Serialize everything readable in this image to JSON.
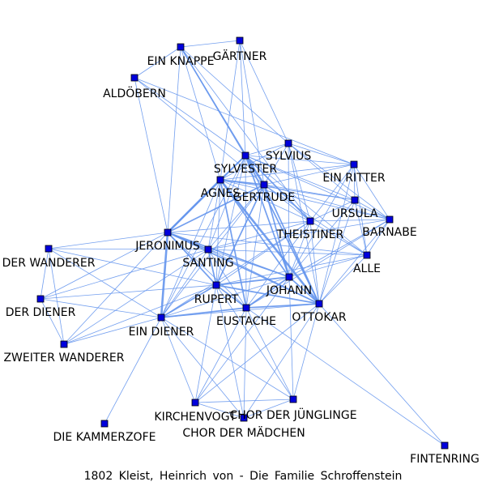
{
  "caption": "1802  Kleist,  Heinrich  von  -  Die  Familie  Schroffenstein",
  "colors": {
    "edge": "#6495ed",
    "node_fill": "#0000dd",
    "node_stroke": "#000000",
    "label": "#000000"
  },
  "nodes": [
    {
      "id": "gaertner",
      "label": "GÄRTNER"
    },
    {
      "id": "ein_knappe",
      "label": "EIN KNAPPE"
    },
    {
      "id": "aldoebern",
      "label": "ALDÖBERN"
    },
    {
      "id": "sylvius",
      "label": "SYLVIUS"
    },
    {
      "id": "sylvester",
      "label": "SYLVESTER"
    },
    {
      "id": "ein_ritter",
      "label": "EIN RITTER"
    },
    {
      "id": "agnes",
      "label": "AGNES"
    },
    {
      "id": "gertrude",
      "label": "GERTRUDE"
    },
    {
      "id": "ursula",
      "label": "URSULA"
    },
    {
      "id": "barnabe",
      "label": "BARNABE"
    },
    {
      "id": "theistiner",
      "label": "THEISTINER"
    },
    {
      "id": "jeronimus",
      "label": "JERONIMUS"
    },
    {
      "id": "der_wanderer",
      "label": "DER WANDERER"
    },
    {
      "id": "santing",
      "label": "SANTING"
    },
    {
      "id": "alle",
      "label": "ALLE"
    },
    {
      "id": "johann",
      "label": "JOHANN"
    },
    {
      "id": "der_diener",
      "label": "DER DIENER"
    },
    {
      "id": "rupert",
      "label": "RUPERT"
    },
    {
      "id": "ottokar",
      "label": "OTTOKAR"
    },
    {
      "id": "eustache",
      "label": "EUSTACHE"
    },
    {
      "id": "ein_diener",
      "label": "EIN DIENER"
    },
    {
      "id": "zweiter_wanderer",
      "label": "ZWEITER WANDERER"
    },
    {
      "id": "kirchenvogt",
      "label": "KIRCHENVOGT"
    },
    {
      "id": "chor_juenglinge",
      "label": "CHOR DER JÜNGLINGE"
    },
    {
      "id": "chor_maedchen",
      "label": "CHOR DER MÄDCHEN"
    },
    {
      "id": "die_kammerzofe",
      "label": "DIE KAMMERZOFE"
    },
    {
      "id": "fintenring",
      "label": "FINTENRING"
    }
  ],
  "edges": [
    [
      "ein_knappe",
      "gaertner",
      1
    ],
    [
      "ein_knappe",
      "aldoebern",
      1
    ],
    [
      "ein_knappe",
      "sylvester",
      2
    ],
    [
      "ein_knappe",
      "agnes",
      1
    ],
    [
      "ein_knappe",
      "gertrude",
      1
    ],
    [
      "ein_knappe",
      "jeronimus",
      1
    ],
    [
      "ein_knappe",
      "sylvius",
      1
    ],
    [
      "ein_knappe",
      "theistiner",
      1
    ],
    [
      "gaertner",
      "sylvester",
      1
    ],
    [
      "gaertner",
      "agnes",
      1
    ],
    [
      "gaertner",
      "gertrude",
      1
    ],
    [
      "gaertner",
      "sylvius",
      1
    ],
    [
      "aldoebern",
      "sylvester",
      1
    ],
    [
      "aldoebern",
      "gertrude",
      1
    ],
    [
      "aldoebern",
      "ein_ritter",
      1
    ],
    [
      "aldoebern",
      "jeronimus",
      1
    ],
    [
      "sylvester",
      "sylvius",
      1
    ],
    [
      "sylvester",
      "gertrude",
      3
    ],
    [
      "sylvester",
      "agnes",
      2
    ],
    [
      "sylvester",
      "ein_ritter",
      1
    ],
    [
      "sylvester",
      "ursula",
      1
    ],
    [
      "sylvester",
      "barnabe",
      1
    ],
    [
      "sylvester",
      "theistiner",
      2
    ],
    [
      "sylvester",
      "jeronimus",
      2
    ],
    [
      "sylvester",
      "santing",
      1
    ],
    [
      "sylvester",
      "johann",
      2
    ],
    [
      "sylvester",
      "ottokar",
      2
    ],
    [
      "sylvester",
      "rupert",
      1
    ],
    [
      "sylvester",
      "eustache",
      1
    ],
    [
      "sylvester",
      "alle",
      1
    ],
    [
      "sylvester",
      "ein_diener",
      1
    ],
    [
      "sylvius",
      "agnes",
      1
    ],
    [
      "sylvius",
      "gertrude",
      1
    ],
    [
      "sylvius",
      "ein_ritter",
      1
    ],
    [
      "sylvius",
      "ursula",
      1
    ],
    [
      "sylvius",
      "barnabe",
      1
    ],
    [
      "sylvius",
      "theistiner",
      1
    ],
    [
      "sylvius",
      "johann",
      1
    ],
    [
      "sylvius",
      "ottokar",
      1
    ],
    [
      "ein_ritter",
      "agnes",
      1
    ],
    [
      "ein_ritter",
      "gertrude",
      1
    ],
    [
      "ein_ritter",
      "ursula",
      1
    ],
    [
      "ein_ritter",
      "barnabe",
      1
    ],
    [
      "ein_ritter",
      "theistiner",
      1
    ],
    [
      "ein_ritter",
      "johann",
      1
    ],
    [
      "ein_ritter",
      "ottokar",
      1
    ],
    [
      "ein_ritter",
      "alle",
      1
    ],
    [
      "agnes",
      "gertrude",
      2
    ],
    [
      "agnes",
      "jeronimus",
      3
    ],
    [
      "agnes",
      "johann",
      2
    ],
    [
      "agnes",
      "ottokar",
      3
    ],
    [
      "agnes",
      "santing",
      1
    ],
    [
      "agnes",
      "rupert",
      1
    ],
    [
      "agnes",
      "eustache",
      2
    ],
    [
      "agnes",
      "ursula",
      1
    ],
    [
      "agnes",
      "barnabe",
      1
    ],
    [
      "agnes",
      "theistiner",
      1
    ],
    [
      "agnes",
      "ein_diener",
      1
    ],
    [
      "gertrude",
      "jeronimus",
      2
    ],
    [
      "gertrude",
      "johann",
      2
    ],
    [
      "gertrude",
      "ottokar",
      2
    ],
    [
      "gertrude",
      "rupert",
      2
    ],
    [
      "gertrude",
      "eustache",
      1
    ],
    [
      "gertrude",
      "santing",
      1
    ],
    [
      "gertrude",
      "ursula",
      1
    ],
    [
      "gertrude",
      "barnabe",
      1
    ],
    [
      "gertrude",
      "theistiner",
      1
    ],
    [
      "gertrude",
      "alle",
      1
    ],
    [
      "gertrude",
      "ein_diener",
      1
    ],
    [
      "ursula",
      "barnabe",
      1
    ],
    [
      "ursula",
      "theistiner",
      1
    ],
    [
      "ursula",
      "johann",
      1
    ],
    [
      "ursula",
      "ottokar",
      1
    ],
    [
      "ursula",
      "alle",
      1
    ],
    [
      "barnabe",
      "theistiner",
      1
    ],
    [
      "barnabe",
      "johann",
      1
    ],
    [
      "barnabe",
      "ottokar",
      1
    ],
    [
      "barnabe",
      "alle",
      1
    ],
    [
      "barnabe",
      "santing",
      1
    ],
    [
      "barnabe",
      "eustache",
      1
    ],
    [
      "theistiner",
      "jeronimus",
      1
    ],
    [
      "theistiner",
      "santing",
      1
    ],
    [
      "theistiner",
      "johann",
      1
    ],
    [
      "theistiner",
      "ottokar",
      1
    ],
    [
      "theistiner",
      "rupert",
      1
    ],
    [
      "theistiner",
      "eustache",
      1
    ],
    [
      "theistiner",
      "alle",
      1
    ],
    [
      "theistiner",
      "ein_diener",
      1
    ],
    [
      "jeronimus",
      "santing",
      2
    ],
    [
      "jeronimus",
      "johann",
      2
    ],
    [
      "jeronimus",
      "ottokar",
      2
    ],
    [
      "jeronimus",
      "rupert",
      2
    ],
    [
      "jeronimus",
      "eustache",
      1
    ],
    [
      "jeronimus",
      "ein_diener",
      3
    ],
    [
      "jeronimus",
      "der_wanderer",
      1
    ],
    [
      "jeronimus",
      "der_diener",
      1
    ],
    [
      "jeronimus",
      "zweiter_wanderer",
      1
    ],
    [
      "jeronimus",
      "alle",
      1
    ],
    [
      "der_wanderer",
      "santing",
      1
    ],
    [
      "der_wanderer",
      "ein_diener",
      1
    ],
    [
      "der_wanderer",
      "der_diener",
      1
    ],
    [
      "der_wanderer",
      "zweiter_wanderer",
      1
    ],
    [
      "der_wanderer",
      "rupert",
      1
    ],
    [
      "der_diener",
      "ein_diener",
      1
    ],
    [
      "der_diener",
      "zweiter_wanderer",
      1
    ],
    [
      "der_diener",
      "santing",
      1
    ],
    [
      "der_diener",
      "rupert",
      1
    ],
    [
      "zweiter_wanderer",
      "ein_diener",
      1
    ],
    [
      "zweiter_wanderer",
      "rupert",
      1
    ],
    [
      "zweiter_wanderer",
      "santing",
      1
    ],
    [
      "santing",
      "rupert",
      2
    ],
    [
      "santing",
      "johann",
      1
    ],
    [
      "santing",
      "ottokar",
      1
    ],
    [
      "santing",
      "eustache",
      1
    ],
    [
      "santing",
      "ein_diener",
      1
    ],
    [
      "santing",
      "alle",
      1
    ],
    [
      "johann",
      "ottokar",
      2
    ],
    [
      "johann",
      "rupert",
      2
    ],
    [
      "johann",
      "eustache",
      2
    ],
    [
      "johann",
      "ein_diener",
      1
    ],
    [
      "johann",
      "alle",
      1
    ],
    [
      "johann",
      "kirchenvogt",
      1
    ],
    [
      "johann",
      "chor_juenglinge",
      1
    ],
    [
      "ottokar",
      "rupert",
      2
    ],
    [
      "ottokar",
      "eustache",
      2
    ],
    [
      "ottokar",
      "ein_diener",
      1
    ],
    [
      "ottokar",
      "alle",
      1
    ],
    [
      "ottokar",
      "kirchenvogt",
      1
    ],
    [
      "ottokar",
      "chor_juenglinge",
      1
    ],
    [
      "ottokar",
      "chor_maedchen",
      1
    ],
    [
      "ottokar",
      "fintenring",
      1
    ],
    [
      "rupert",
      "eustache",
      2
    ],
    [
      "rupert",
      "ein_diener",
      2
    ],
    [
      "rupert",
      "kirchenvogt",
      1
    ],
    [
      "rupert",
      "chor_maedchen",
      1
    ],
    [
      "rupert",
      "chor_juenglinge",
      1
    ],
    [
      "rupert",
      "alle",
      1
    ],
    [
      "eustache",
      "ein_diener",
      2
    ],
    [
      "eustache",
      "kirchenvogt",
      1
    ],
    [
      "eustache",
      "chor_juenglinge",
      1
    ],
    [
      "eustache",
      "chor_maedchen",
      1
    ],
    [
      "eustache",
      "fintenring",
      1
    ],
    [
      "ein_diener",
      "kirchenvogt",
      1
    ],
    [
      "ein_diener",
      "chor_maedchen",
      1
    ],
    [
      "ein_diener",
      "chor_juenglinge",
      1
    ],
    [
      "ein_diener",
      "die_kammerzofe",
      1
    ],
    [
      "kirchenvogt",
      "chor_juenglinge",
      1
    ],
    [
      "kirchenvogt",
      "chor_maedchen",
      1
    ],
    [
      "chor_juenglinge",
      "chor_maedchen",
      1
    ]
  ]
}
